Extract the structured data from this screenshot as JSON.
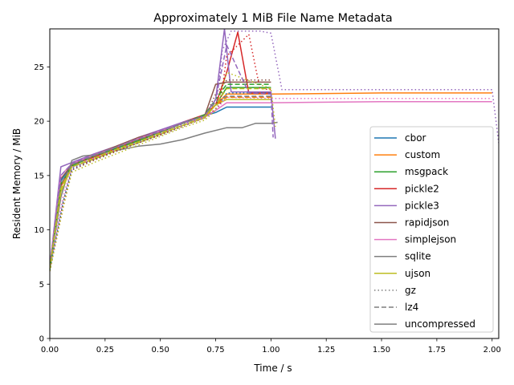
{
  "chart_data": {
    "type": "line",
    "title": "Approximately 1 MiB File Name Metadata",
    "xlabel": "Time / s",
    "ylabel": "Resident Memory / MiB",
    "xlim": [
      0,
      2.03
    ],
    "ylim": [
      0,
      28.5
    ],
    "xticks": [
      "0.00",
      "0.25",
      "0.50",
      "0.75",
      "1.00",
      "1.25",
      "1.50",
      "1.75",
      "2.00"
    ],
    "yticks": [
      "0",
      "5",
      "10",
      "15",
      "20",
      "25"
    ],
    "grid": false,
    "legend_position": "lower-right",
    "legend": {
      "colors": [
        {
          "label": "cbor",
          "color": "#1f77b4"
        },
        {
          "label": "custom",
          "color": "#ff7f0e"
        },
        {
          "label": "msgpack",
          "color": "#2ca02c"
        },
        {
          "label": "pickle2",
          "color": "#d62728"
        },
        {
          "label": "pickle3",
          "color": "#9467bd"
        },
        {
          "label": "rapidjson",
          "color": "#8c564b"
        },
        {
          "label": "simplejson",
          "color": "#e377c2"
        },
        {
          "label": "sqlite",
          "color": "#7f7f7f"
        },
        {
          "label": "ujson",
          "color": "#bcbd22"
        }
      ],
      "styles": [
        {
          "label": "gz",
          "dash": "dotted"
        },
        {
          "label": "lz4",
          "dash": "dashed"
        },
        {
          "label": "uncompressed",
          "dash": "solid"
        }
      ]
    },
    "series": [
      {
        "format": "cbor",
        "style": "uncompressed",
        "color": "#1f77b4",
        "x": [
          0,
          0.05,
          0.1,
          0.2,
          0.3,
          0.4,
          0.5,
          0.6,
          0.7,
          0.75,
          0.8,
          0.9,
          1.0
        ],
        "y": [
          6.5,
          14.5,
          16.0,
          16.8,
          17.6,
          18.3,
          19.0,
          19.8,
          20.5,
          20.8,
          21.3,
          21.3,
          21.3
        ]
      },
      {
        "format": "custom",
        "style": "uncompressed",
        "color": "#ff7f0e",
        "x": [
          0,
          0.05,
          0.1,
          0.2,
          0.3,
          0.4,
          0.5,
          0.6,
          0.7,
          0.75,
          0.8,
          1.0,
          1.5,
          2.0
        ],
        "y": [
          6.5,
          14.0,
          16.0,
          16.8,
          17.5,
          18.3,
          19.0,
          19.8,
          20.5,
          21.5,
          22.5,
          22.5,
          22.6,
          22.6
        ]
      },
      {
        "format": "msgpack",
        "style": "uncompressed",
        "color": "#2ca02c",
        "x": [
          0,
          0.05,
          0.1,
          0.2,
          0.3,
          0.4,
          0.5,
          0.6,
          0.7,
          0.75,
          0.8,
          1.0
        ],
        "y": [
          6.3,
          14.2,
          15.9,
          16.8,
          17.5,
          18.2,
          19.0,
          19.8,
          20.6,
          21.5,
          23.1,
          23.1
        ]
      },
      {
        "format": "pickle2",
        "style": "uncompressed",
        "color": "#d62728",
        "x": [
          0,
          0.05,
          0.1,
          0.2,
          0.3,
          0.4,
          0.5,
          0.6,
          0.7,
          0.75,
          0.8,
          0.85,
          0.9,
          1.0
        ],
        "y": [
          6.4,
          14.0,
          16.0,
          16.7,
          17.5,
          18.3,
          19.0,
          19.9,
          20.6,
          21.5,
          24.5,
          28.2,
          22.6,
          22.6
        ]
      },
      {
        "format": "pickle3",
        "style": "uncompressed",
        "color": "#9467bd",
        "x": [
          0,
          0.05,
          0.1,
          0.2,
          0.3,
          0.4,
          0.5,
          0.6,
          0.7,
          0.75,
          0.79,
          0.82,
          0.9,
          1.0,
          1.02
        ],
        "y": [
          6.6,
          15.8,
          16.2,
          17.0,
          17.7,
          18.5,
          19.2,
          19.9,
          20.5,
          22.0,
          28.5,
          22.7,
          22.7,
          22.7,
          18.4
        ]
      },
      {
        "format": "rapidjson",
        "style": "uncompressed",
        "color": "#8c564b",
        "x": [
          0,
          0.05,
          0.1,
          0.2,
          0.3,
          0.4,
          0.5,
          0.6,
          0.7,
          0.75,
          0.8,
          1.0
        ],
        "y": [
          6.5,
          14.7,
          16.0,
          16.9,
          17.7,
          18.5,
          19.1,
          19.8,
          20.5,
          23.4,
          23.6,
          23.6
        ]
      },
      {
        "format": "simplejson",
        "style": "uncompressed",
        "color": "#e377c2",
        "x": [
          0,
          0.05,
          0.1,
          0.2,
          0.3,
          0.4,
          0.5,
          0.6,
          0.7,
          0.75,
          0.8,
          1.0,
          1.5,
          2.0
        ],
        "y": [
          6.7,
          15.0,
          16.1,
          16.9,
          17.6,
          18.4,
          19.1,
          19.8,
          20.4,
          21.0,
          21.7,
          21.7,
          21.8,
          21.8
        ]
      },
      {
        "format": "sqlite",
        "style": "uncompressed",
        "color": "#7f7f7f",
        "x": [
          0,
          0.05,
          0.1,
          0.15,
          0.2,
          0.3,
          0.4,
          0.5,
          0.6,
          0.7,
          0.8,
          0.87,
          0.93,
          1.0,
          1.03
        ],
        "y": [
          6.4,
          13.0,
          16.4,
          16.8,
          16.9,
          17.3,
          17.7,
          17.9,
          18.3,
          18.9,
          19.4,
          19.4,
          19.8,
          19.8,
          19.9
        ]
      },
      {
        "format": "ujson",
        "style": "uncompressed",
        "color": "#bcbd22",
        "x": [
          0,
          0.05,
          0.1,
          0.2,
          0.3,
          0.4,
          0.5,
          0.6,
          0.7,
          0.75,
          0.8,
          1.0
        ],
        "y": [
          6.5,
          13.5,
          15.8,
          16.5,
          17.3,
          18.0,
          18.8,
          19.6,
          20.3,
          21.5,
          22.0,
          22.0
        ]
      },
      {
        "format": "cbor",
        "style": "gz",
        "color": "#1f77b4",
        "x": [
          0,
          0.06,
          0.1,
          0.2,
          0.3,
          0.4,
          0.5,
          0.6,
          0.7,
          0.75,
          0.8,
          1.0
        ],
        "y": [
          6.3,
          12.5,
          15.6,
          16.5,
          17.3,
          18.0,
          18.8,
          19.6,
          20.3,
          21.0,
          22.6,
          22.6
        ]
      },
      {
        "format": "pickle2",
        "style": "gz",
        "color": "#d62728",
        "x": [
          0,
          0.06,
          0.1,
          0.2,
          0.3,
          0.4,
          0.5,
          0.6,
          0.7,
          0.77,
          0.8,
          0.9,
          0.95,
          1.0
        ],
        "y": [
          6.2,
          12.0,
          15.5,
          16.5,
          17.3,
          18.0,
          18.8,
          19.6,
          20.3,
          21.5,
          26.0,
          28.0,
          23.0,
          22.9
        ]
      },
      {
        "format": "pickle3",
        "style": "gz",
        "color": "#9467bd",
        "x": [
          0,
          0.06,
          0.1,
          0.2,
          0.3,
          0.4,
          0.5,
          0.6,
          0.7,
          0.75,
          0.78,
          0.82,
          0.95,
          1.0,
          1.05,
          1.5,
          2.0,
          2.03
        ],
        "y": [
          6.4,
          13.0,
          15.7,
          16.6,
          17.4,
          18.1,
          18.9,
          19.7,
          20.4,
          21.0,
          26.5,
          28.3,
          28.3,
          28.1,
          22.9,
          22.9,
          22.9,
          18.0
        ]
      },
      {
        "format": "rapidjson",
        "style": "gz",
        "color": "#8c564b",
        "x": [
          0,
          0.06,
          0.1,
          0.2,
          0.3,
          0.4,
          0.5,
          0.6,
          0.7,
          0.75,
          0.8,
          1.0
        ],
        "y": [
          6.2,
          12.5,
          15.5,
          16.4,
          17.2,
          18.0,
          18.7,
          19.5,
          20.3,
          22.5,
          23.8,
          23.8
        ]
      },
      {
        "format": "simplejson",
        "style": "gz",
        "color": "#e377c2",
        "x": [
          0,
          0.06,
          0.1,
          0.2,
          0.3,
          0.4,
          0.5,
          0.6,
          0.7,
          0.75,
          0.8,
          1.0,
          1.5,
          2.0
        ],
        "y": [
          6.4,
          13.0,
          15.8,
          16.6,
          17.4,
          18.1,
          18.9,
          19.6,
          20.3,
          21.0,
          22.2,
          22.1,
          22.1,
          22.1
        ]
      },
      {
        "format": "ujson",
        "style": "gz",
        "color": "#bcbd22",
        "x": [
          0,
          0.06,
          0.1,
          0.2,
          0.3,
          0.4,
          0.5,
          0.6,
          0.7,
          0.75,
          0.8,
          1.0,
          1.02
        ],
        "y": [
          6.2,
          12.0,
          15.3,
          16.2,
          17.0,
          17.8,
          18.6,
          19.4,
          20.1,
          21.0,
          24.5,
          23.0,
          19.5
        ]
      },
      {
        "format": "custom",
        "style": "lz4",
        "color": "#ff7f0e",
        "x": [
          0,
          0.05,
          0.1,
          0.2,
          0.3,
          0.4,
          0.5,
          0.6,
          0.7,
          0.75,
          0.8,
          1.0
        ],
        "y": [
          6.4,
          14.0,
          16.0,
          16.8,
          17.5,
          18.3,
          19.0,
          19.8,
          20.5,
          21.5,
          22.2,
          22.2
        ]
      },
      {
        "format": "msgpack",
        "style": "lz4",
        "color": "#2ca02c",
        "x": [
          0,
          0.05,
          0.1,
          0.2,
          0.3,
          0.4,
          0.5,
          0.6,
          0.7,
          0.75,
          0.8,
          1.0
        ],
        "y": [
          6.3,
          14.2,
          15.9,
          16.8,
          17.5,
          18.2,
          19.0,
          19.8,
          20.6,
          22.0,
          23.4,
          23.4
        ]
      },
      {
        "format": "pickle3",
        "style": "lz4",
        "color": "#9467bd",
        "x": [
          0,
          0.05,
          0.1,
          0.2,
          0.3,
          0.4,
          0.5,
          0.6,
          0.7,
          0.75,
          0.8,
          0.9,
          1.0,
          1.01
        ],
        "y": [
          6.5,
          15.0,
          16.1,
          16.9,
          17.6,
          18.4,
          19.1,
          19.8,
          20.5,
          22.0,
          27.0,
          22.6,
          22.5,
          18.5
        ]
      },
      {
        "format": "sqlite",
        "style": "lz4",
        "color": "#7f7f7f",
        "x": [
          0,
          0.05,
          0.1,
          0.2,
          0.3,
          0.4,
          0.5,
          0.6,
          0.7,
          0.75,
          0.8,
          1.0
        ],
        "y": [
          6.5,
          14.2,
          16.0,
          16.8,
          17.6,
          18.3,
          19.0,
          19.8,
          20.5,
          21.8,
          22.3,
          22.3
        ]
      },
      {
        "format": "ujson",
        "style": "lz4",
        "color": "#bcbd22",
        "x": [
          0,
          0.05,
          0.1,
          0.2,
          0.3,
          0.4,
          0.5,
          0.6,
          0.7,
          0.75,
          0.8,
          1.0
        ],
        "y": [
          6.4,
          13.8,
          15.8,
          16.6,
          17.4,
          18.1,
          18.9,
          19.6,
          20.4,
          21.5,
          23.0,
          23.0
        ]
      }
    ]
  }
}
